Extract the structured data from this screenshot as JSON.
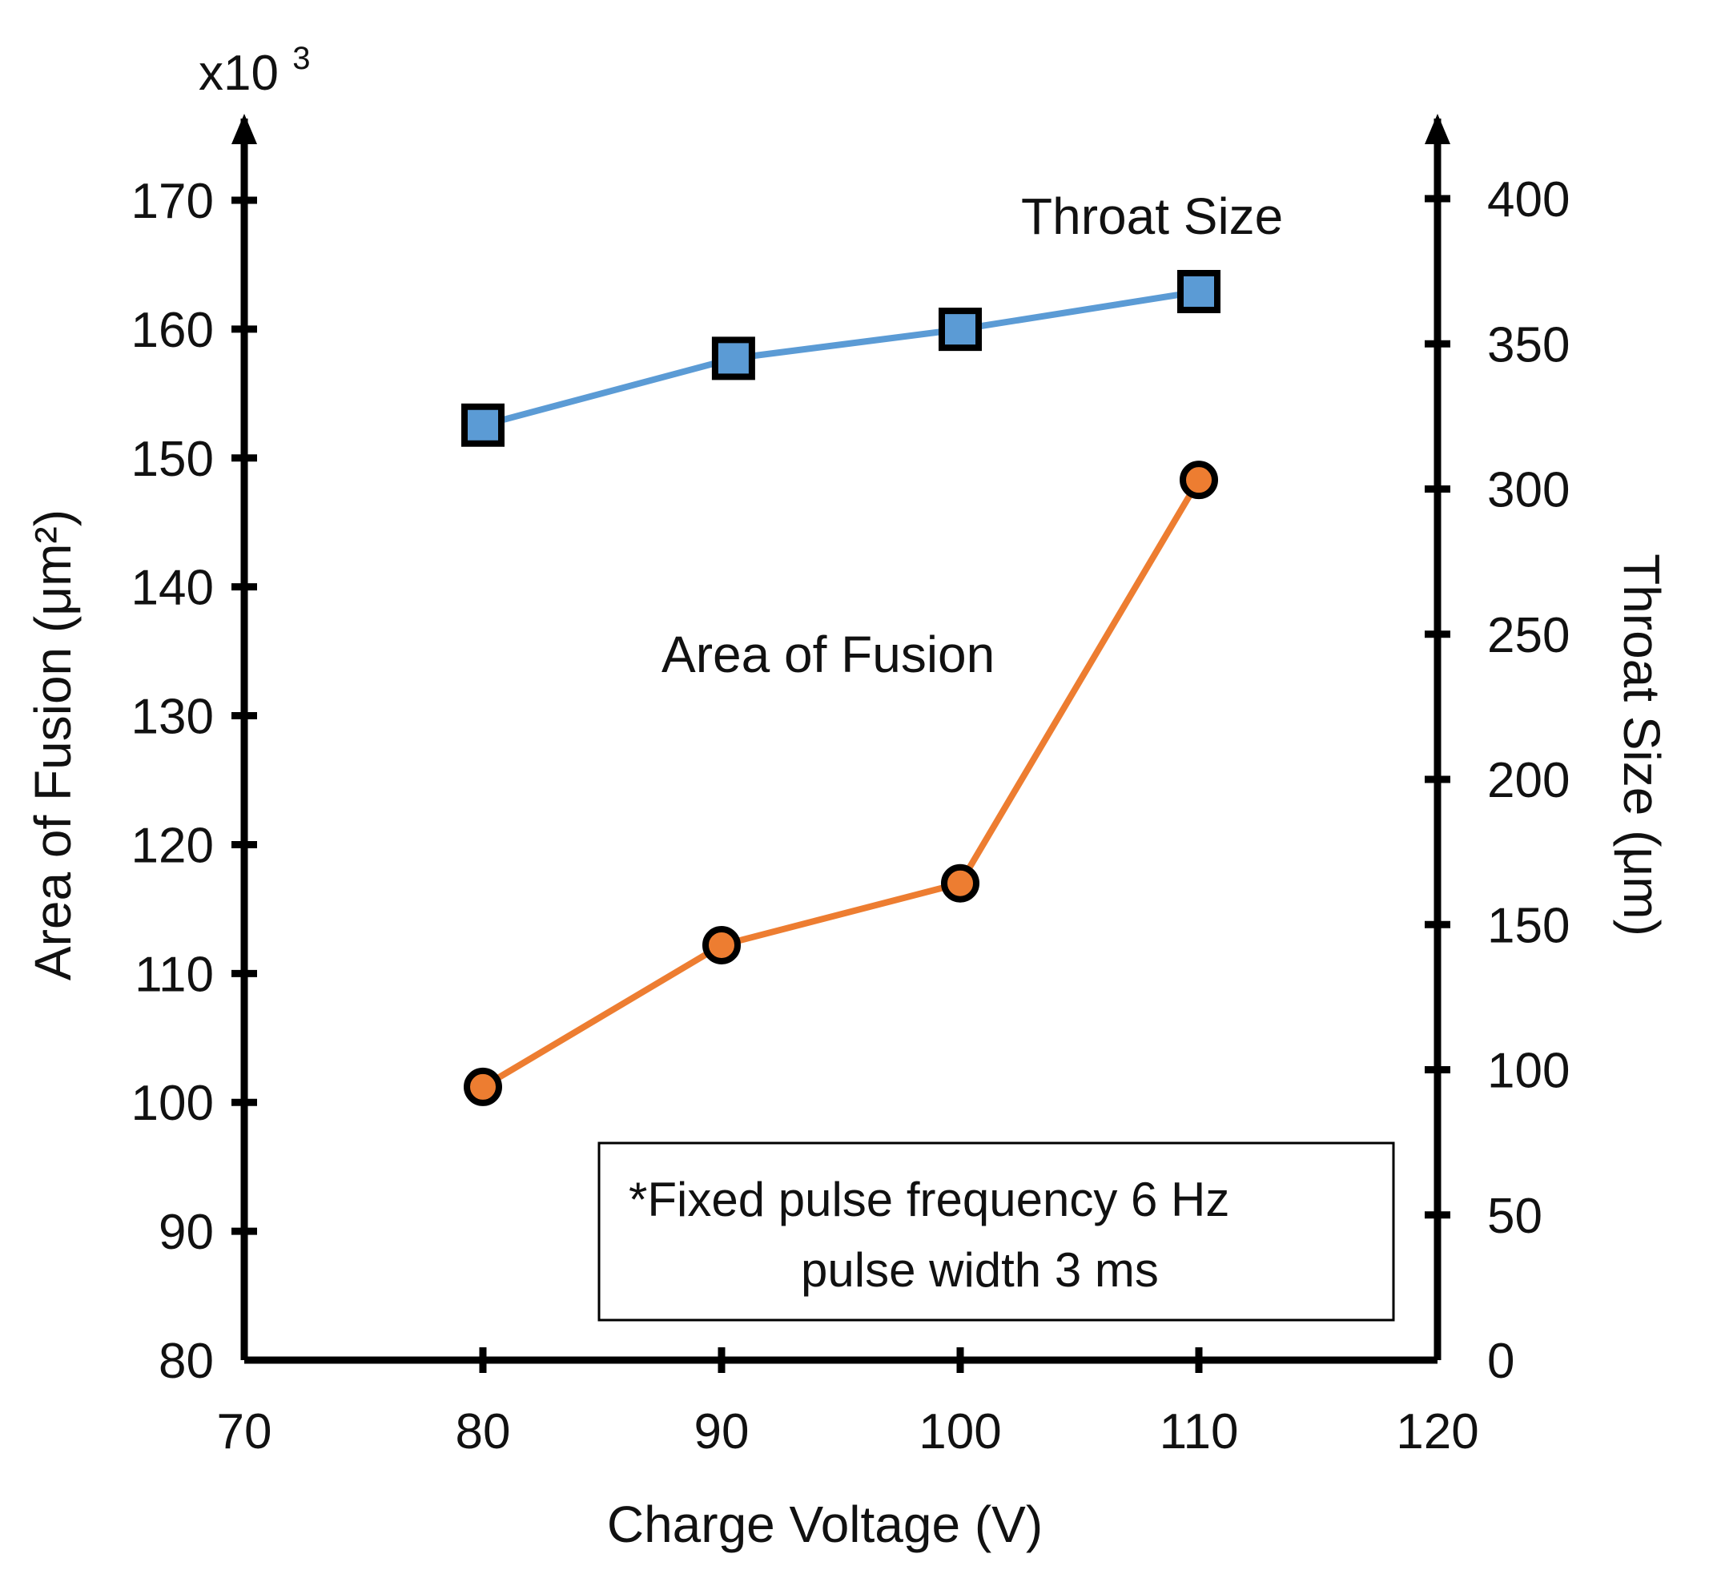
{
  "chart_data": {
    "type": "line",
    "title": "",
    "xlabel": "Charge Voltage (V)",
    "ylabel": "Area of Fusion (μm²)",
    "y2label": "Throat Size (μm)",
    "y_multiplier": "x10³",
    "xlim": [
      70,
      120
    ],
    "ylim": [
      80,
      170
    ],
    "y2lim": [
      0,
      400
    ],
    "xticks": [
      70,
      80,
      90,
      100,
      110,
      120
    ],
    "yticks": [
      80,
      90,
      100,
      110,
      120,
      130,
      140,
      150,
      160,
      170
    ],
    "y2ticks": [
      0,
      50,
      100,
      150,
      200,
      250,
      300,
      350,
      400
    ],
    "grid": false,
    "series": [
      {
        "name": "Throat Size",
        "axis": "right",
        "marker": "square",
        "color": "#5b9bd5",
        "x": [
          80,
          90.5,
          100,
          110
        ],
        "values": [
          322,
          345,
          355,
          368
        ]
      },
      {
        "name": "Area of Fusion",
        "axis": "left",
        "marker": "circle",
        "color": "#ed7d31",
        "x": [
          80,
          90,
          100,
          110
        ],
        "values": [
          101.2,
          112.2,
          117,
          148.3
        ]
      }
    ],
    "annotation": {
      "line1": "*Fixed pulse frequency 6 Hz",
      "line2": "pulse width 3 ms"
    }
  }
}
